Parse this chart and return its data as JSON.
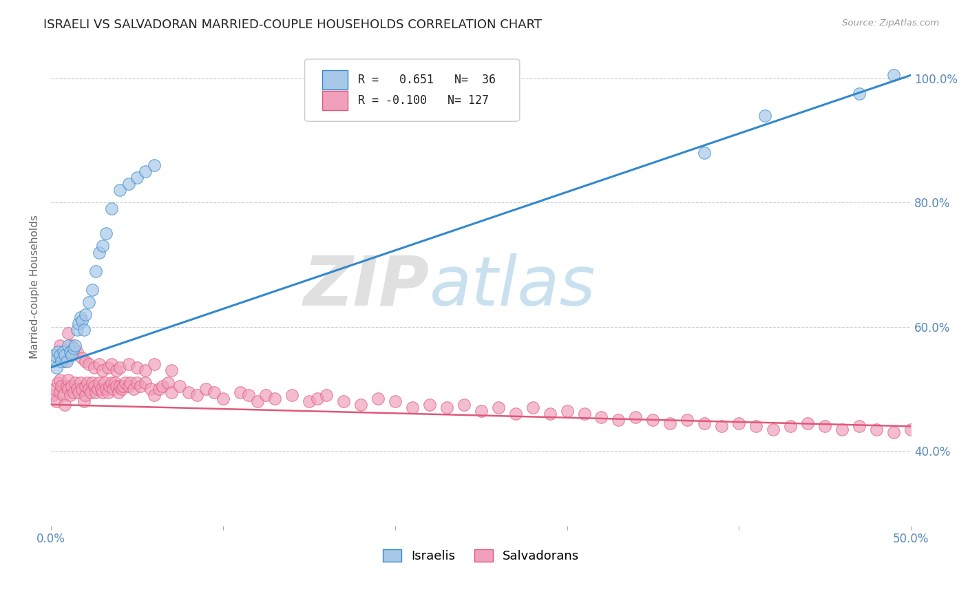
{
  "title": "ISRAELI VS SALVADORAN MARRIED-COUPLE HOUSEHOLDS CORRELATION CHART",
  "source": "Source: ZipAtlas.com",
  "ylabel": "Married-couple Households",
  "xlim": [
    0.0,
    0.5
  ],
  "ylim": [
    0.28,
    1.05
  ],
  "xticks": [
    0.0,
    0.1,
    0.2,
    0.3,
    0.4,
    0.5
  ],
  "xticklabels": [
    "0.0%",
    "",
    "",
    "",
    "",
    "50.0%"
  ],
  "yticks": [
    0.4,
    0.6,
    0.8,
    1.0
  ],
  "yticklabels": [
    "40.0%",
    "60.0%",
    "80.0%",
    "100.0%"
  ],
  "israeli_color": "#a8c8e8",
  "salvadoran_color": "#f0a0bc",
  "israeli_line_color": "#3388cc",
  "salvadoran_line_color": "#e05878",
  "R_israeli": 0.651,
  "N_israeli": 36,
  "R_salvadoran": -0.1,
  "N_salvadoran": 127,
  "legend_israeli_label": "Israelis",
  "legend_salvadoran_label": "Salvadorans",
  "watermark_zip": "ZIP",
  "watermark_atlas": "atlas",
  "background_color": "#ffffff",
  "grid_color": "#cccccc",
  "axis_color": "#5588bb",
  "title_fontsize": 13,
  "label_fontsize": 11,
  "tick_fontsize": 12,
  "israeli_x": [
    0.001,
    0.002,
    0.003,
    0.004,
    0.005,
    0.006,
    0.007,
    0.008,
    0.009,
    0.01,
    0.011,
    0.012,
    0.013,
    0.014,
    0.015,
    0.016,
    0.017,
    0.018,
    0.019,
    0.02,
    0.022,
    0.024,
    0.026,
    0.028,
    0.03,
    0.032,
    0.035,
    0.04,
    0.045,
    0.05,
    0.055,
    0.06,
    0.38,
    0.415,
    0.47,
    0.49
  ],
  "israeli_y": [
    0.545,
    0.555,
    0.535,
    0.56,
    0.555,
    0.545,
    0.56,
    0.555,
    0.545,
    0.57,
    0.56,
    0.555,
    0.565,
    0.57,
    0.595,
    0.605,
    0.615,
    0.61,
    0.595,
    0.62,
    0.64,
    0.66,
    0.69,
    0.72,
    0.73,
    0.75,
    0.79,
    0.82,
    0.83,
    0.84,
    0.85,
    0.86,
    0.88,
    0.94,
    0.975,
    1.005
  ],
  "salvadoran_x": [
    0.001,
    0.002,
    0.003,
    0.004,
    0.005,
    0.005,
    0.006,
    0.007,
    0.008,
    0.009,
    0.01,
    0.01,
    0.011,
    0.012,
    0.013,
    0.014,
    0.015,
    0.016,
    0.017,
    0.018,
    0.019,
    0.02,
    0.02,
    0.021,
    0.022,
    0.023,
    0.024,
    0.025,
    0.026,
    0.027,
    0.028,
    0.029,
    0.03,
    0.031,
    0.032,
    0.033,
    0.034,
    0.035,
    0.036,
    0.037,
    0.038,
    0.039,
    0.04,
    0.041,
    0.042,
    0.043,
    0.045,
    0.046,
    0.048,
    0.05,
    0.052,
    0.055,
    0.058,
    0.06,
    0.063,
    0.065,
    0.068,
    0.07,
    0.075,
    0.08,
    0.085,
    0.09,
    0.095,
    0.1,
    0.11,
    0.115,
    0.12,
    0.125,
    0.13,
    0.14,
    0.15,
    0.155,
    0.16,
    0.17,
    0.18,
    0.19,
    0.2,
    0.21,
    0.22,
    0.23,
    0.24,
    0.25,
    0.26,
    0.27,
    0.28,
    0.29,
    0.3,
    0.31,
    0.32,
    0.33,
    0.34,
    0.35,
    0.36,
    0.37,
    0.38,
    0.39,
    0.4,
    0.41,
    0.42,
    0.43,
    0.44,
    0.45,
    0.46,
    0.47,
    0.48,
    0.49,
    0.5,
    0.005,
    0.008,
    0.01,
    0.012,
    0.015,
    0.018,
    0.02,
    0.022,
    0.025,
    0.028,
    0.03,
    0.033,
    0.035,
    0.038,
    0.04,
    0.045,
    0.05,
    0.055,
    0.06,
    0.07
  ],
  "salvadoran_y": [
    0.49,
    0.5,
    0.48,
    0.51,
    0.495,
    0.515,
    0.505,
    0.49,
    0.475,
    0.505,
    0.515,
    0.5,
    0.49,
    0.505,
    0.495,
    0.51,
    0.5,
    0.495,
    0.51,
    0.5,
    0.48,
    0.49,
    0.505,
    0.51,
    0.5,
    0.495,
    0.51,
    0.505,
    0.495,
    0.5,
    0.51,
    0.5,
    0.495,
    0.51,
    0.5,
    0.495,
    0.505,
    0.51,
    0.5,
    0.51,
    0.505,
    0.495,
    0.505,
    0.5,
    0.505,
    0.51,
    0.505,
    0.51,
    0.5,
    0.51,
    0.505,
    0.51,
    0.5,
    0.49,
    0.5,
    0.505,
    0.51,
    0.495,
    0.505,
    0.495,
    0.49,
    0.5,
    0.495,
    0.485,
    0.495,
    0.49,
    0.48,
    0.49,
    0.485,
    0.49,
    0.48,
    0.485,
    0.49,
    0.48,
    0.475,
    0.485,
    0.48,
    0.47,
    0.475,
    0.47,
    0.475,
    0.465,
    0.47,
    0.46,
    0.47,
    0.46,
    0.465,
    0.46,
    0.455,
    0.45,
    0.455,
    0.45,
    0.445,
    0.45,
    0.445,
    0.44,
    0.445,
    0.44,
    0.435,
    0.44,
    0.445,
    0.44,
    0.435,
    0.44,
    0.435,
    0.43,
    0.435,
    0.57,
    0.545,
    0.59,
    0.57,
    0.56,
    0.55,
    0.545,
    0.54,
    0.535,
    0.54,
    0.53,
    0.535,
    0.54,
    0.53,
    0.535,
    0.54,
    0.535,
    0.53,
    0.54,
    0.53
  ],
  "isr_line_x0": 0.0,
  "isr_line_y0": 0.535,
  "isr_line_x1": 0.5,
  "isr_line_y1": 1.005,
  "sal_line_x0": 0.0,
  "sal_line_y0": 0.475,
  "sal_line_x1": 0.5,
  "sal_line_y1": 0.44
}
